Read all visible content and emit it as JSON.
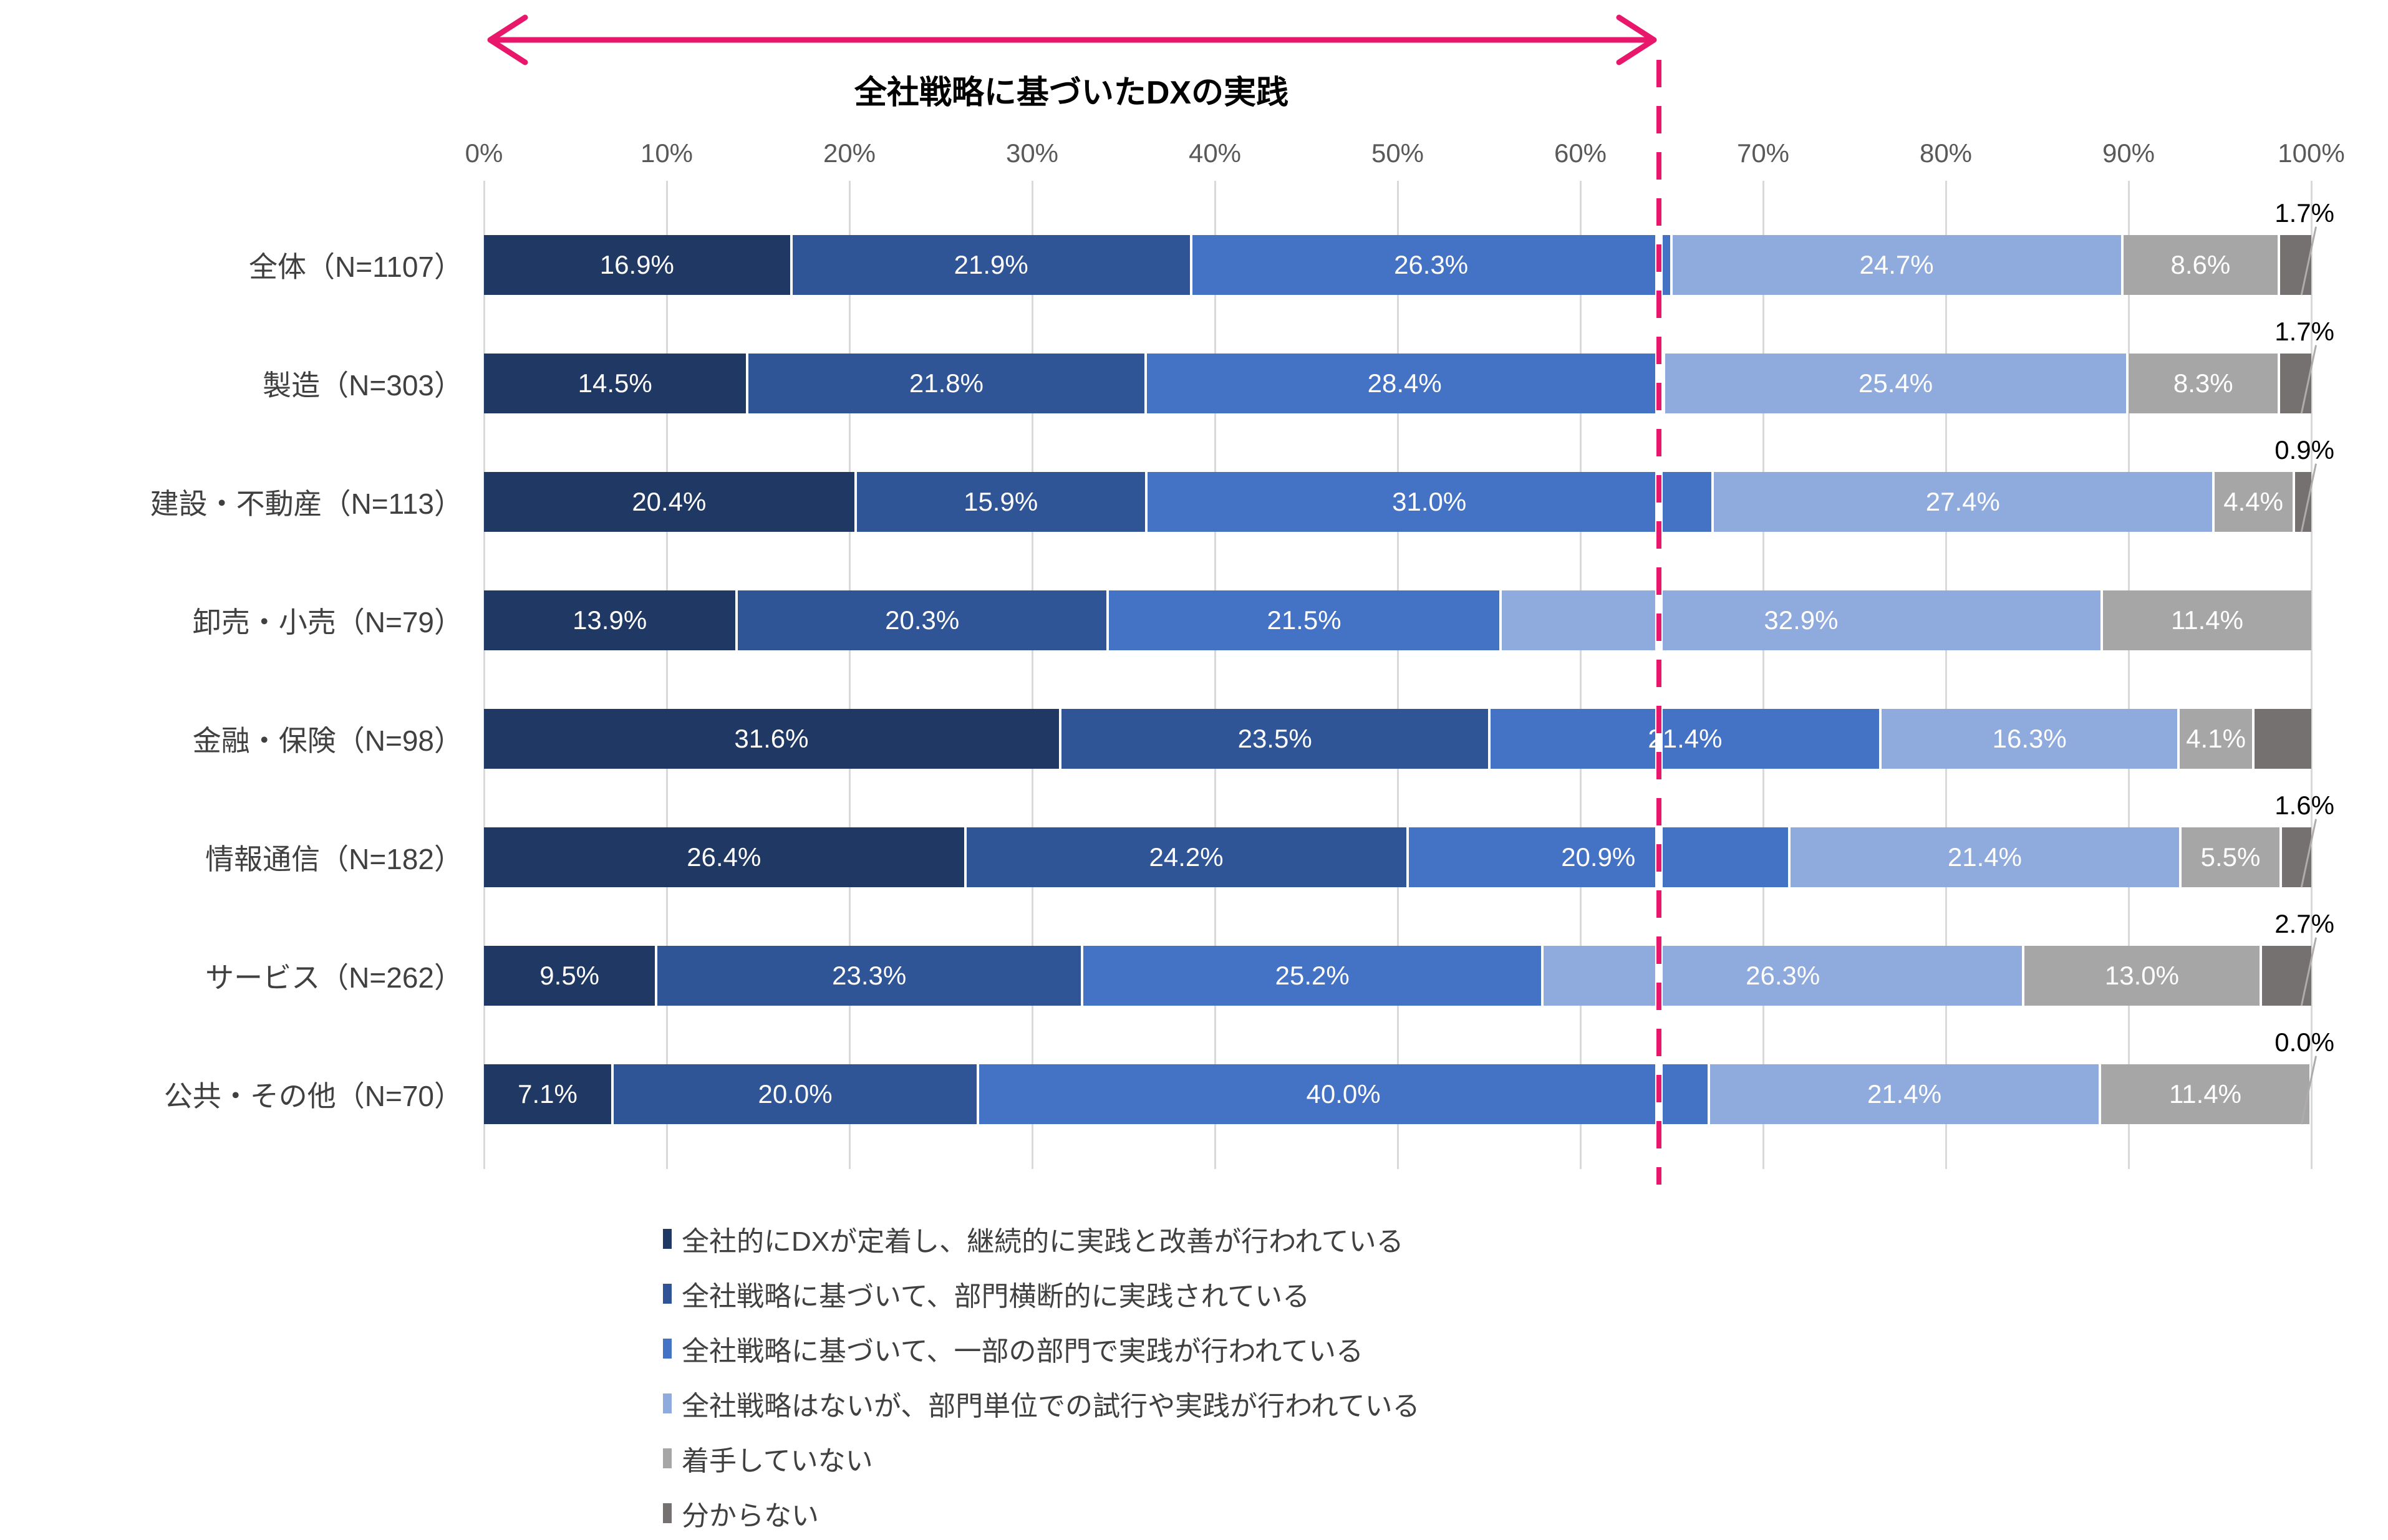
{
  "chart_data": {
    "type": "bar",
    "orientation": "horizontal_stacked",
    "xlim": [
      0,
      100
    ],
    "grid": true,
    "legend_position": "bottom",
    "x_ticks": [
      "0%",
      "10%",
      "20%",
      "30%",
      "40%",
      "50%",
      "60%",
      "70%",
      "80%",
      "90%",
      "100%"
    ],
    "annotation": {
      "label": "全社戦略に基づいたDXの実践",
      "arrow_from_percent": 0,
      "arrow_to_percent": 64.3,
      "dashed_line_percent": 64.3,
      "color": "#E8176B"
    },
    "series": [
      {
        "name": "全社的にDXが定着し、継続的に実践と改善が行われている",
        "color": "#1F3864",
        "values": [
          16.9,
          14.5,
          20.4,
          13.9,
          31.6,
          26.4,
          9.5,
          7.1
        ]
      },
      {
        "name": "全社戦略に基づいて、部門横断的に実践されている",
        "color": "#2F5597",
        "values": [
          21.9,
          21.8,
          15.9,
          20.3,
          23.5,
          24.2,
          23.3,
          20.0
        ]
      },
      {
        "name": "全社戦略に基づいて、一部の部門で実践が行われている",
        "color": "#4472C4",
        "values": [
          26.3,
          28.4,
          31.0,
          21.5,
          21.4,
          20.9,
          25.2,
          40.0
        ]
      },
      {
        "name": "全社戦略はないが、部門単位での試行や実践が行われている",
        "color": "#8FAADC",
        "values": [
          24.7,
          25.4,
          27.4,
          32.9,
          16.3,
          21.4,
          26.3,
          21.4
        ]
      },
      {
        "name": "着手していない",
        "color": "#A6A6A6",
        "values": [
          8.6,
          8.3,
          4.4,
          11.4,
          4.1,
          5.5,
          13.0,
          11.4
        ]
      },
      {
        "name": "分からない",
        "color": "#767171",
        "values": [
          1.7,
          1.7,
          0.9,
          0.0,
          3.1,
          1.6,
          2.7,
          0.0
        ]
      }
    ],
    "categories": [
      "全体（N=1107）",
      "製造（N=303）",
      "建設・不動産（N=113）",
      "卸売・小売（N=79）",
      "金融・保険（N=98）",
      "情報通信（N=182）",
      "サービス（N=262）",
      "公共・その他（N=70）"
    ],
    "rows": [
      {
        "category": "全体（N=1107）",
        "values": [
          16.9,
          21.9,
          26.3,
          24.7,
          8.6,
          1.7
        ],
        "labels": [
          "16.9%",
          "21.9%",
          "26.3%",
          "24.7%",
          "8.6%",
          ""
        ],
        "callout": "1.7%"
      },
      {
        "category": "製造（N=303）",
        "values": [
          14.5,
          21.8,
          28.4,
          25.4,
          8.3,
          1.7
        ],
        "labels": [
          "14.5%",
          "21.8%",
          "28.4%",
          "25.4%",
          "8.3%",
          ""
        ],
        "callout": "1.7%"
      },
      {
        "category": "建設・不動産（N=113）",
        "values": [
          20.4,
          15.9,
          31.0,
          27.4,
          4.4,
          0.9
        ],
        "labels": [
          "20.4%",
          "15.9%",
          "31.0%",
          "27.4%",
          "4.4%",
          ""
        ],
        "callout": "0.9%"
      },
      {
        "category": "卸売・小売（N=79）",
        "values": [
          13.9,
          20.3,
          21.5,
          32.9,
          11.4,
          0.0
        ],
        "labels": [
          "13.9%",
          "20.3%",
          "21.5%",
          "32.9%",
          "11.4%",
          ""
        ],
        "callout": ""
      },
      {
        "category": "金融・保険（N=98）",
        "values": [
          31.6,
          23.5,
          21.4,
          16.3,
          4.1,
          3.1
        ],
        "labels": [
          "31.6%",
          "23.5%",
          "21.4%",
          "16.3%",
          "4.1%",
          ""
        ],
        "callout": ""
      },
      {
        "category": "情報通信（N=182）",
        "values": [
          26.4,
          24.2,
          20.9,
          21.4,
          5.5,
          1.6
        ],
        "labels": [
          "26.4%",
          "24.2%",
          "20.9%",
          "21.4%",
          "5.5%",
          ""
        ],
        "callout": "1.6%"
      },
      {
        "category": "サービス（N=262）",
        "values": [
          9.5,
          23.3,
          25.2,
          26.3,
          13.0,
          2.7
        ],
        "labels": [
          "9.5%",
          "23.3%",
          "25.2%",
          "26.3%",
          "13.0%",
          ""
        ],
        "callout": "2.7%"
      },
      {
        "category": "公共・その他（N=70）",
        "values": [
          7.1,
          20.0,
          40.0,
          21.4,
          11.4,
          0.0
        ],
        "labels": [
          "7.1%",
          "20.0%",
          "40.0%",
          "21.4%",
          "11.4%",
          ""
        ],
        "callout": "0.0%"
      }
    ],
    "colors": {
      "grid": "#D9D9D9",
      "axis_text": "#595959",
      "category_text": "#404040",
      "bar_label_text": "#FFFFFF",
      "callout_text": "#000000",
      "accent_pink": "#E8176B"
    }
  }
}
